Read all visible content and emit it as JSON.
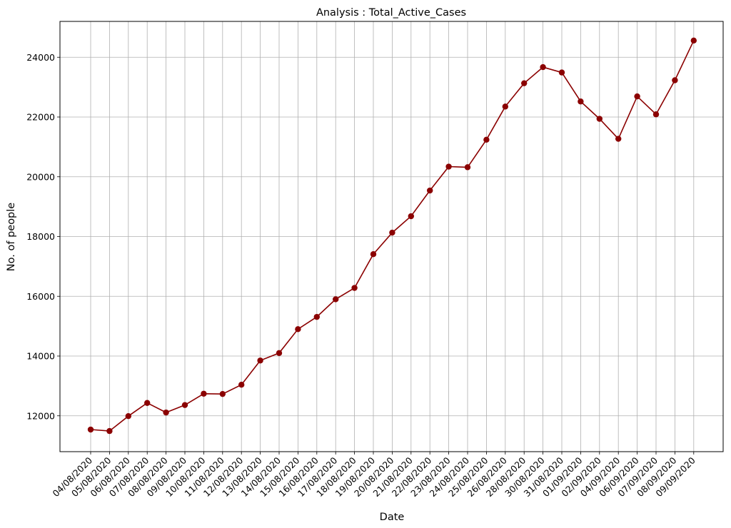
{
  "chart_data": {
    "type": "line",
    "title": "Analysis : Total_Active_Cases",
    "xlabel": "Date",
    "ylabel": "No. of people",
    "ylim": [
      10800,
      25200
    ],
    "yticks": [
      12000,
      14000,
      16000,
      18000,
      20000,
      22000,
      24000
    ],
    "grid": true,
    "color": "#8b0000",
    "categories": [
      "04/08/2020",
      "05/08/2020",
      "06/08/2020",
      "07/08/2020",
      "08/08/2020",
      "09/08/2020",
      "10/08/2020",
      "11/08/2020",
      "12/08/2020",
      "13/08/2020",
      "14/08/2020",
      "15/08/2020",
      "16/08/2020",
      "17/08/2020",
      "18/08/2020",
      "19/08/2020",
      "20/08/2020",
      "21/08/2020",
      "22/08/2020",
      "23/08/2020",
      "24/08/2020",
      "25/08/2020",
      "26/08/2020",
      "28/08/2020",
      "30/08/2020",
      "31/08/2020",
      "01/09/2020",
      "02/09/2020",
      "04/09/2020",
      "06/09/2020",
      "07/09/2020",
      "08/09/2020",
      "09/09/2020"
    ],
    "values": [
      11540,
      11490,
      11990,
      12430,
      12110,
      12360,
      12740,
      12730,
      13040,
      13850,
      14100,
      14900,
      15310,
      15900,
      16280,
      17410,
      18130,
      18680,
      19540,
      20340,
      20320,
      21240,
      22350,
      23130,
      23670,
      23490,
      22520,
      21940,
      21270,
      22690,
      22090,
      23230,
      24560
    ]
  }
}
